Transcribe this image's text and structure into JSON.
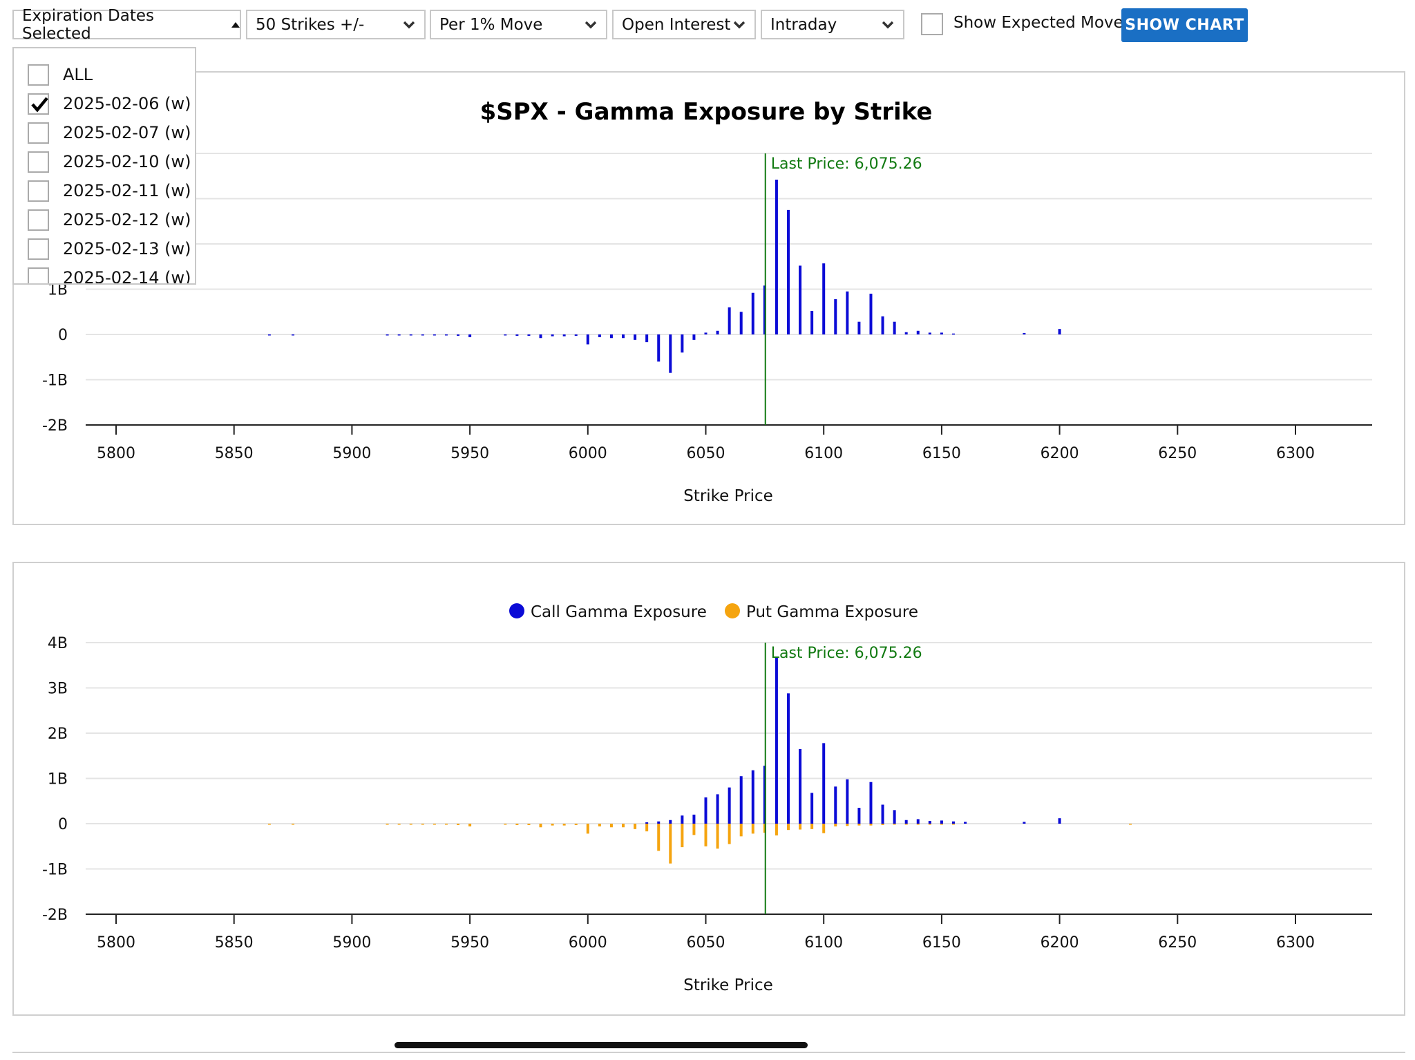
{
  "toolbar": {
    "expiration_label": "Expiration Dates Selected",
    "strikes_label": "50 Strikes +/-",
    "move_label": "Per 1% Move",
    "metric_label": "Open Interest",
    "timeframe_label": "Intraday",
    "expected_move_label": "Show Expected Move",
    "show_chart_label": "SHOW CHART"
  },
  "dropdown": {
    "items": [
      {
        "label": "ALL",
        "checked": false
      },
      {
        "label": "2025-02-06 (w)",
        "checked": true
      },
      {
        "label": "2025-02-07 (w)",
        "checked": false
      },
      {
        "label": "2025-02-10 (w)",
        "checked": false
      },
      {
        "label": "2025-02-11 (w)",
        "checked": false
      },
      {
        "label": "2025-02-12 (w)",
        "checked": false
      },
      {
        "label": "2025-02-13 (w)",
        "checked": false
      },
      {
        "label": "2025-02-14 (w)",
        "checked": false
      }
    ]
  },
  "colors": {
    "call": "#0b0bd6",
    "put": "#f5a40f",
    "last_price": "#117a11",
    "accent": "#1a6fc4"
  },
  "chart_data": [
    {
      "type": "bar",
      "title": "$SPX - Gamma Exposure by Strike",
      "xlabel": "Strike Price",
      "x_ticks": [
        "5800",
        "5850",
        "5900",
        "5950",
        "6000",
        "6050",
        "6100",
        "6150",
        "6200",
        "6250",
        "6300"
      ],
      "x_range": [
        5800,
        6300
      ],
      "y_ticks": [
        "-2B",
        "-1B",
        "0",
        "1B"
      ],
      "y_range": [
        -2,
        4
      ],
      "last_price": 6075.26,
      "last_price_label": "Last Price: 6,075.26",
      "legend": false,
      "series": [
        {
          "x": [
            5865,
            5875,
            5915,
            5920,
            5925,
            5930,
            5935,
            5940,
            5945,
            5950,
            5965,
            5970,
            5975,
            5980,
            5985,
            5990,
            5995,
            6000,
            6005,
            6010,
            6015,
            6020,
            6025,
            6030,
            6035,
            6040,
            6045,
            6050,
            6055,
            6060,
            6065,
            6070,
            6075,
            6080,
            6085,
            6090,
            6095,
            6100,
            6105,
            6110,
            6115,
            6120,
            6125,
            6130,
            6135,
            6140,
            6145,
            6150,
            6155,
            6185,
            6200
          ],
          "values": [
            -0.02,
            -0.02,
            -0.02,
            -0.02,
            -0.02,
            -0.02,
            -0.02,
            -0.02,
            -0.03,
            -0.06,
            -0.02,
            -0.03,
            -0.03,
            -0.08,
            -0.04,
            -0.04,
            -0.03,
            -0.22,
            -0.06,
            -0.08,
            -0.08,
            -0.12,
            -0.17,
            -0.6,
            -0.85,
            -0.4,
            -0.12,
            0.04,
            0.08,
            0.6,
            0.5,
            0.92,
            1.08,
            3.42,
            2.75,
            1.52,
            0.52,
            1.57,
            0.78,
            0.95,
            0.28,
            0.9,
            0.4,
            0.28,
            0.05,
            0.08,
            0.04,
            0.04,
            0.02,
            0.03,
            0.12
          ]
        }
      ]
    },
    {
      "type": "bar",
      "title": "",
      "xlabel": "Strike Price",
      "x_ticks": [
        "5800",
        "5850",
        "5900",
        "5950",
        "6000",
        "6050",
        "6100",
        "6150",
        "6200",
        "6250",
        "6300"
      ],
      "x_range": [
        5800,
        6300
      ],
      "y_ticks": [
        "-2B",
        "-1B",
        "0",
        "1B",
        "2B",
        "3B",
        "4B"
      ],
      "y_range": [
        -2,
        4
      ],
      "last_price": 6075.26,
      "last_price_label": "Last Price: 6,075.26",
      "legend": "top-center",
      "series": [
        {
          "name": "Call Gamma Exposure",
          "x": [
            6025,
            6030,
            6035,
            6040,
            6045,
            6050,
            6055,
            6060,
            6065,
            6070,
            6075,
            6080,
            6085,
            6090,
            6095,
            6100,
            6105,
            6110,
            6115,
            6120,
            6125,
            6130,
            6135,
            6140,
            6145,
            6150,
            6155,
            6160,
            6185,
            6200
          ],
          "values": [
            0.03,
            0.05,
            0.08,
            0.18,
            0.2,
            0.58,
            0.65,
            0.8,
            1.05,
            1.18,
            1.28,
            3.68,
            2.88,
            1.65,
            0.68,
            1.78,
            0.82,
            0.98,
            0.35,
            0.92,
            0.42,
            0.3,
            0.08,
            0.1,
            0.06,
            0.07,
            0.05,
            0.04,
            0.04,
            0.12
          ]
        },
        {
          "name": "Put Gamma Exposure",
          "x": [
            5865,
            5875,
            5915,
            5920,
            5925,
            5930,
            5935,
            5940,
            5945,
            5950,
            5965,
            5970,
            5975,
            5980,
            5985,
            5990,
            5995,
            6000,
            6005,
            6010,
            6015,
            6020,
            6025,
            6030,
            6035,
            6040,
            6045,
            6050,
            6055,
            6060,
            6065,
            6070,
            6075,
            6080,
            6085,
            6090,
            6095,
            6100,
            6105,
            6110,
            6115,
            6120,
            6125,
            6130,
            6135,
            6140,
            6145,
            6150,
            6155,
            6230
          ],
          "values": [
            -0.02,
            -0.02,
            -0.02,
            -0.02,
            -0.02,
            -0.02,
            -0.02,
            -0.02,
            -0.03,
            -0.06,
            -0.02,
            -0.03,
            -0.03,
            -0.08,
            -0.04,
            -0.04,
            -0.03,
            -0.22,
            -0.06,
            -0.08,
            -0.08,
            -0.12,
            -0.17,
            -0.6,
            -0.88,
            -0.52,
            -0.25,
            -0.5,
            -0.55,
            -0.45,
            -0.28,
            -0.22,
            -0.2,
            -0.26,
            -0.14,
            -0.13,
            -0.12,
            -0.21,
            -0.06,
            -0.05,
            -0.04,
            -0.04,
            -0.03,
            -0.02,
            -0.02,
            -0.02,
            -0.02,
            -0.02,
            -0.02,
            -0.02
          ]
        }
      ]
    }
  ]
}
